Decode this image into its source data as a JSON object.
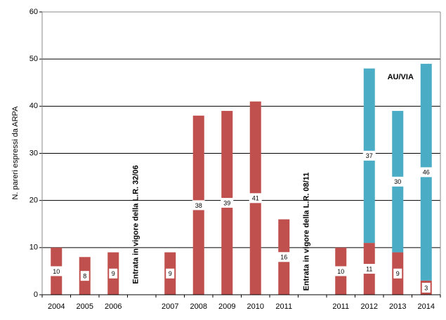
{
  "chart_data": {
    "type": "stacked-bar",
    "y_label": "N. pareri espressi da ARPA",
    "categories": [
      "2004",
      "2005",
      "2006",
      null,
      "2007",
      "2008",
      "2009",
      "2010",
      "2011",
      null,
      "2011",
      "2012",
      "2013",
      "2014"
    ],
    "series": [
      {
        "color": "#c0504d",
        "values": [
          10,
          8,
          9,
          null,
          9,
          38,
          39,
          41,
          16,
          null,
          10,
          11,
          9,
          3
        ]
      },
      {
        "color": "#4bacc6",
        "values": [
          null,
          null,
          null,
          null,
          null,
          null,
          null,
          null,
          null,
          null,
          null,
          37,
          30,
          46
        ]
      }
    ],
    "ylim": [
      0,
      60
    ],
    "yticks": [
      0,
      10,
      20,
      30,
      40,
      50,
      60
    ],
    "grid": true,
    "annotations": [
      {
        "text": "Entrata in vigore della L.R. 32/06",
        "category_index": 3
      },
      {
        "text": "Entrata in vigore della L.R. 08/11",
        "category_index": 9
      },
      {
        "text": "AU/VIA",
        "category_index": 12
      }
    ]
  }
}
